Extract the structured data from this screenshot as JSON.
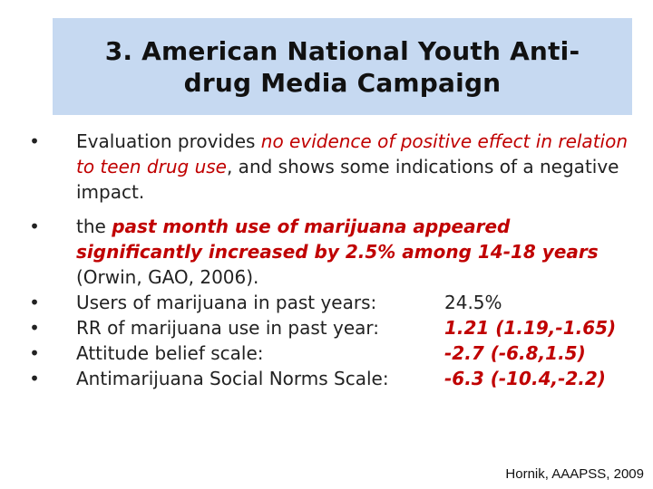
{
  "title": {
    "line1": "3. American National Youth Anti-",
    "line2": "drug Media Campaign"
  },
  "bullet1": {
    "lead": "Evaluation provides ",
    "emphasis": "no evidence of positive effect in relation to teen drug use",
    "tail": ", and shows some indications of a negative impact."
  },
  "bullet2": {
    "lead": "the ",
    "emphasis": "past month use of marijuana appeared significantly increased by 2.5% among 14-18 years",
    "tail": " (Orwin, GAO, 2006)."
  },
  "stats": [
    {
      "label": "Users of marijuana in past years:",
      "value": "24.5%",
      "highlight": false
    },
    {
      "label": "RR of marijuana use in past year:",
      "value": "1.21 (1.19,-1.65)",
      "highlight": true
    },
    {
      "label": "Attitude belief scale:",
      "value": "-2.7 (-6.8,1.5)",
      "highlight": true
    },
    {
      "label": "Antimarijuana Social Norms Scale:",
      "value": "-6.3 (-10.4,-2.2)",
      "highlight": true
    }
  ],
  "citation": "Hornik, AAAPSS, 2009",
  "colors": {
    "title_background": "#c6d9f1",
    "emphasis": "#c00000"
  }
}
